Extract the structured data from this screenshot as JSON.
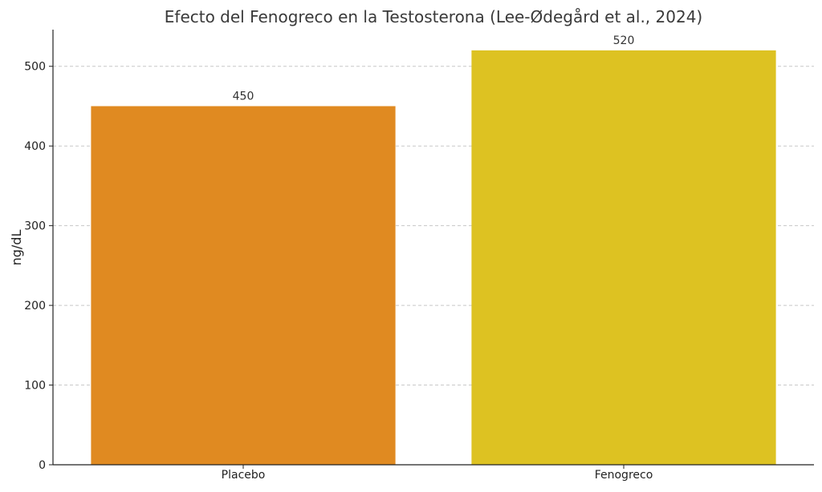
{
  "chart_data": {
    "type": "bar",
    "title": "Efecto del Fenogreco en la Testosterona (Lee-Ødegård et al., 2024)",
    "xlabel": "",
    "ylabel": "ng/dL",
    "categories": [
      "Placebo",
      "Fenogreco"
    ],
    "values": [
      450,
      520
    ],
    "value_labels": [
      "450",
      "520"
    ],
    "colors": [
      "#E08A21",
      "#DDC222"
    ],
    "ylim": [
      0,
      546
    ],
    "yticks": [
      0,
      100,
      200,
      300,
      400,
      500
    ],
    "grid": true
  }
}
